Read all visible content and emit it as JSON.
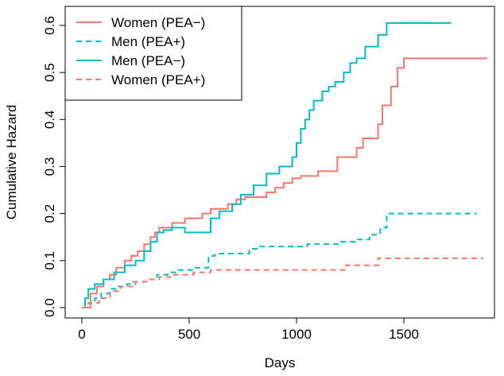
{
  "chart_data": {
    "type": "line",
    "step": true,
    "xlabel": "Days",
    "ylabel": "Cumulative Hazard",
    "xlim": [
      0,
      1900
    ],
    "ylim": [
      0,
      0.62
    ],
    "xticks": [
      0,
      500,
      1000,
      1500
    ],
    "yticks": [
      0.0,
      0.1,
      0.2,
      0.3,
      0.4,
      0.5,
      0.6
    ],
    "xtick_labels": [
      "0",
      "500",
      "1000",
      "1500"
    ],
    "ytick_labels": [
      "0.0",
      "0.1",
      "0.2",
      "0.3",
      "0.4",
      "0.5",
      "0.6"
    ],
    "grid": false,
    "legend_position": "top-left",
    "legend": [
      {
        "name": "Women (PEA−)",
        "series": 0
      },
      {
        "name": "Men (PEA+)",
        "series": 1
      },
      {
        "name": "Men (PEA−)",
        "series": 2
      },
      {
        "name": "Women (PEA+)",
        "series": 3
      }
    ],
    "series": [
      {
        "name": "Women (PEA−)",
        "color": "#F8766D",
        "dash": "solid",
        "x": [
          0,
          40,
          70,
          100,
          130,
          160,
          200,
          230,
          260,
          290,
          320,
          340,
          360,
          380,
          420,
          480,
          560,
          600,
          640,
          680,
          720,
          760,
          800,
          860,
          900,
          940,
          980,
          1020,
          1070,
          1100,
          1190,
          1240,
          1280,
          1310,
          1340,
          1380,
          1400,
          1440,
          1470,
          1500,
          1890
        ],
        "y": [
          0,
          0.03,
          0.045,
          0.06,
          0.07,
          0.085,
          0.1,
          0.11,
          0.12,
          0.135,
          0.15,
          0.16,
          0.17,
          0.17,
          0.18,
          0.19,
          0.2,
          0.21,
          0.21,
          0.22,
          0.23,
          0.235,
          0.235,
          0.245,
          0.255,
          0.265,
          0.275,
          0.28,
          0.28,
          0.29,
          0.32,
          0.32,
          0.34,
          0.36,
          0.36,
          0.39,
          0.43,
          0.47,
          0.51,
          0.53,
          0.53
        ]
      },
      {
        "name": "Men (PEA+)",
        "color": "#00BFC4",
        "dash": "dashed",
        "x": [
          0,
          30,
          60,
          90,
          130,
          170,
          210,
          250,
          300,
          350,
          400,
          450,
          520,
          590,
          620,
          780,
          820,
          950,
          1050,
          1200,
          1280,
          1340,
          1390,
          1420,
          1840
        ],
        "y": [
          0,
          0.01,
          0.02,
          0.03,
          0.04,
          0.045,
          0.05,
          0.055,
          0.06,
          0.07,
          0.075,
          0.08,
          0.085,
          0.11,
          0.115,
          0.125,
          0.13,
          0.13,
          0.135,
          0.14,
          0.145,
          0.155,
          0.17,
          0.2,
          0.2
        ]
      },
      {
        "name": "Men (PEA−)",
        "color": "#00BFC4",
        "dash": "solid",
        "x": [
          0,
          15,
          30,
          60,
          100,
          150,
          200,
          250,
          290,
          320,
          350,
          380,
          420,
          480,
          600,
          640,
          700,
          740,
          800,
          860,
          920,
          980,
          1000,
          1020,
          1040,
          1060,
          1080,
          1120,
          1150,
          1180,
          1220,
          1250,
          1280,
          1320,
          1380,
          1420,
          1720
        ],
        "y": [
          0,
          0.02,
          0.04,
          0.05,
          0.06,
          0.075,
          0.09,
          0.1,
          0.12,
          0.14,
          0.16,
          0.165,
          0.17,
          0.16,
          0.19,
          0.205,
          0.22,
          0.24,
          0.26,
          0.285,
          0.3,
          0.32,
          0.35,
          0.38,
          0.4,
          0.42,
          0.44,
          0.46,
          0.47,
          0.48,
          0.5,
          0.52,
          0.53,
          0.555,
          0.58,
          0.605,
          0.605
        ]
      },
      {
        "name": "Women (PEA+)",
        "color": "#F8766D",
        "dash": "dashed",
        "x": [
          0,
          30,
          80,
          130,
          180,
          240,
          300,
          360,
          420,
          520,
          600,
          1230,
          1290,
          1380,
          1870
        ],
        "y": [
          0,
          0.01,
          0.02,
          0.035,
          0.045,
          0.055,
          0.06,
          0.065,
          0.07,
          0.075,
          0.08,
          0.09,
          0.09,
          0.105,
          0.105
        ]
      }
    ]
  }
}
